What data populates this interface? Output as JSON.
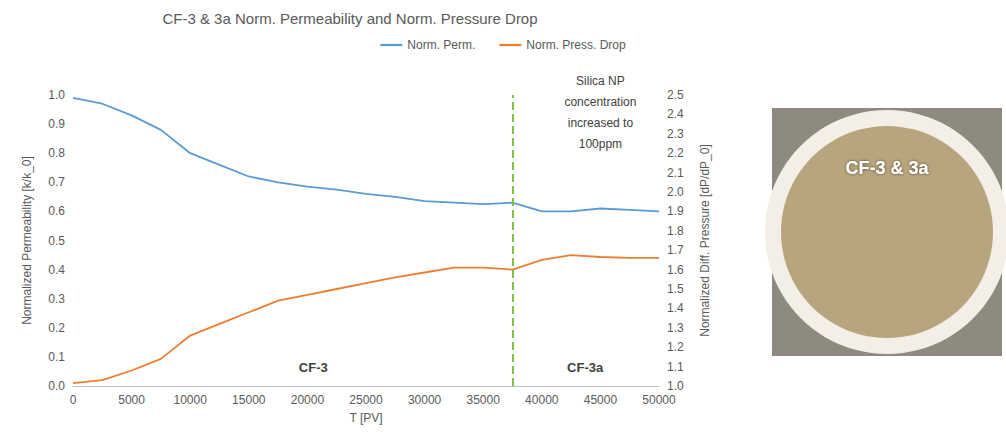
{
  "chart_data": {
    "type": "line",
    "title": "CF-3 & 3a Norm. Permeability and Norm. Pressure Drop",
    "legend": "top",
    "grid": false,
    "x_label": "T [PV]",
    "y_label": "Normalized Permeability [k/k_0]",
    "y2_label": "Normalized Diff. Pressure [dP/dP_0]",
    "xlim": [
      0,
      50000
    ],
    "xticks": [
      0,
      5000,
      10000,
      15000,
      20000,
      25000,
      30000,
      35000,
      40000,
      45000,
      50000
    ],
    "ylim": [
      0,
      1
    ],
    "yticks": [
      {
        "value": 0,
        "label": "0.0"
      },
      0.1,
      0.2,
      0.3,
      0.4,
      0.5,
      0.6,
      0.7,
      0.8,
      0.9,
      {
        "value": 1,
        "label": "1.0"
      }
    ],
    "y2lim": [
      1,
      2.5
    ],
    "y2ticks": [
      {
        "value": 1,
        "label": "1.0"
      },
      1.1,
      1.2,
      1.3,
      1.4,
      1.5,
      1.6,
      1.7,
      1.8,
      1.9,
      {
        "value": 2,
        "label": "2.0"
      },
      2.1,
      2.2,
      2.3,
      2.4,
      2.5
    ],
    "x": [
      0,
      2500,
      5000,
      7500,
      10000,
      12500,
      15000,
      17500,
      20000,
      22500,
      25000,
      27500,
      30000,
      32500,
      35000,
      37500,
      40000,
      42500,
      45000,
      47500,
      50000
    ],
    "series": [
      {
        "name": "Norm. Perm.",
        "color": "#5b9bd5",
        "values": [
          0.99,
          0.97,
          0.93,
          0.88,
          0.8,
          0.76,
          0.72,
          0.7,
          0.685,
          0.675,
          0.66,
          0.65,
          0.635,
          0.63,
          0.625,
          0.63,
          0.6,
          0.6,
          0.61,
          0.605,
          0.6
        ]
      },
      {
        "name": "Norm. Press. Drop",
        "color": "#ed7d31",
        "axis": "y2",
        "values": [
          1.015,
          1.03,
          1.08,
          1.14,
          1.26,
          1.32,
          1.38,
          1.44,
          1.47,
          1.5,
          1.53,
          1.56,
          1.585,
          1.61,
          1.61,
          1.6,
          1.65,
          1.675,
          1.665,
          1.66,
          1.66
        ]
      }
    ],
    "annotations": [
      {
        "x": 37500,
        "color": "#7fc241",
        "line_style": "dashed",
        "text": "Silica NP concentration increased to 100ppm",
        "text_x": 45000,
        "text_y": 0.94
      }
    ],
    "region_labels": [
      {
        "text": "CF-3",
        "x": 20500,
        "y": 0.065
      },
      {
        "text": "CF-3a",
        "x": 43700,
        "y": 0.065
      }
    ],
    "image_label": "CF-3 & 3a"
  }
}
